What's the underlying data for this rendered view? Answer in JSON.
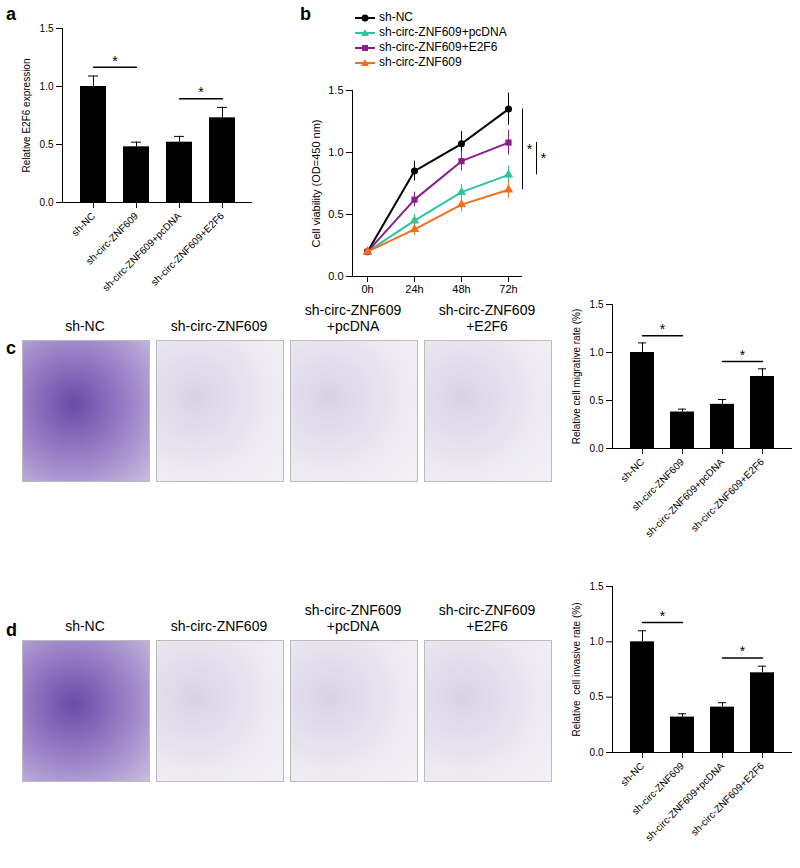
{
  "chart_data": [
    {
      "type": "bar",
      "title": "a",
      "y_label": "Relative E2F6 expression",
      "categories": [
        "sh-NC",
        "sh-circ-ZNF609",
        "sh-circ-ZNF609+pcDNA",
        "sh-circ-ZNF609+E2F6"
      ],
      "values": [
        1.0,
        0.48,
        0.52,
        0.73
      ],
      "errors": [
        0.09,
        0.04,
        0.05,
        0.09
      ],
      "color": "#000000",
      "ylim": [
        0,
        1.5
      ],
      "yticks": [
        {
          "value": 0,
          "label": "0.0"
        },
        0.5,
        {
          "value": 1,
          "label": "1.0"
        },
        1.5
      ],
      "annotations": [
        {
          "text": "*",
          "between": [
            "sh-NC",
            "sh-circ-ZNF609"
          ]
        },
        {
          "text": "*",
          "between": [
            "sh-circ-ZNF609+pcDNA",
            "sh-circ-ZNF609+E2F6"
          ]
        }
      ]
    },
    {
      "type": "line",
      "title": "b",
      "y_label": "Cell viability (OD=450 nm)",
      "categories": [
        "0h",
        "24h",
        "48h",
        "72h"
      ],
      "series": [
        {
          "name": "sh-NC",
          "color": "#000000",
          "marker": "circle",
          "values": [
            0.2,
            0.85,
            1.07,
            1.35
          ],
          "errors": [
            0.02,
            0.08,
            0.1,
            0.13
          ]
        },
        {
          "name": "sh-circ-ZNF609+pcDNA",
          "color": "#2ec4a0",
          "marker": "triangle",
          "values": [
            0.2,
            0.45,
            0.68,
            0.82
          ],
          "errors": [
            0.02,
            0.05,
            0.06,
            0.07
          ]
        },
        {
          "name": "sh-circ-ZNF609+E2F6",
          "color": "#8b1e8b",
          "marker": "square",
          "values": [
            0.2,
            0.62,
            0.93,
            1.08
          ],
          "errors": [
            0.02,
            0.06,
            0.08,
            0.1
          ]
        },
        {
          "name": "sh-circ-ZNF609",
          "color": "#f07020",
          "marker": "triangle",
          "values": [
            0.2,
            0.38,
            0.58,
            0.7
          ],
          "errors": [
            0.02,
            0.05,
            0.06,
            0.07
          ]
        }
      ],
      "ylim": [
        0,
        1.5
      ],
      "yticks": [
        {
          "value": 0,
          "label": "0.0"
        },
        0.5,
        {
          "value": 1,
          "label": "1.0"
        },
        1.5
      ],
      "annotations": [
        {
          "text": "*",
          "between": [
            "sh-NC",
            "sh-circ-ZNF609"
          ]
        },
        {
          "text": "*",
          "between": [
            "sh-circ-ZNF609+E2F6",
            "sh-circ-ZNF609+pcDNA"
          ]
        }
      ]
    },
    {
      "type": "bar",
      "title": "c",
      "y_label": "Relative cell migrative rate (%)",
      "categories": [
        "sh-NC",
        "sh-circ-ZNF609",
        "sh-circ-ZNF609+pcDNA",
        "sh-circ-ZNF609+E2F6"
      ],
      "values": [
        1.0,
        0.38,
        0.46,
        0.75
      ],
      "errors": [
        0.1,
        0.03,
        0.05,
        0.08
      ],
      "color": "#000000",
      "ylim": [
        0,
        1.5
      ],
      "yticks": [
        {
          "value": 0,
          "label": "0.0"
        },
        0.5,
        {
          "value": 1,
          "label": "1.0"
        },
        1.5
      ],
      "annotations": [
        {
          "text": "*",
          "between": [
            "sh-NC",
            "sh-circ-ZNF609"
          ]
        },
        {
          "text": "*",
          "between": [
            "sh-circ-ZNF609+pcDNA",
            "sh-circ-ZNF609+E2F6"
          ]
        }
      ],
      "image_labels": [
        [
          "sh-NC"
        ],
        [
          "sh-circ-ZNF609"
        ],
        [
          "sh-circ-ZNF609",
          "+pcDNA"
        ],
        [
          "sh-circ-ZNF609",
          "+E2F6"
        ]
      ]
    },
    {
      "type": "bar",
      "title": "d",
      "y_label": "Relative  cell invasive rate (%)",
      "categories": [
        "sh-NC",
        "sh-circ-ZNF609",
        "sh-circ-ZNF609+pcDNA",
        "sh-circ-ZNF609+E2F6"
      ],
      "values": [
        1.0,
        0.32,
        0.41,
        0.72
      ],
      "errors": [
        0.1,
        0.03,
        0.04,
        0.06
      ],
      "color": "#000000",
      "ylim": [
        0,
        1.5
      ],
      "yticks": [
        {
          "value": 0,
          "label": "0.0"
        },
        0.5,
        {
          "value": 1,
          "label": "1.0"
        },
        1.5
      ],
      "annotations": [
        {
          "text": "*",
          "between": [
            "sh-NC",
            "sh-circ-ZNF609"
          ]
        },
        {
          "text": "*",
          "between": [
            "sh-circ-ZNF609+pcDNA",
            "sh-circ-ZNF609+E2F6"
          ]
        }
      ],
      "image_labels": [
        [
          "sh-NC"
        ],
        [
          "sh-circ-ZNF609"
        ],
        [
          "sh-circ-ZNF609",
          "+pcDNA"
        ],
        [
          "sh-circ-ZNF609",
          "+E2F6"
        ]
      ]
    }
  ]
}
